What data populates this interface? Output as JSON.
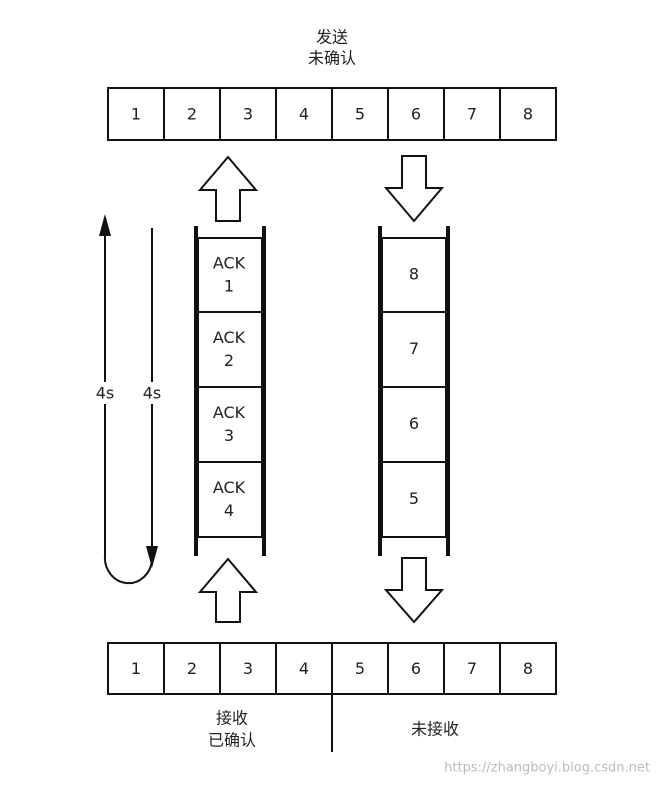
{
  "send_label": [
    "发送",
    "未确认"
  ],
  "send_window": [
    1,
    2,
    3,
    4,
    5,
    6,
    7,
    8
  ],
  "ack_stack": [
    {
      "label": "ACK",
      "number": 1
    },
    {
      "label": "ACK",
      "number": 2
    },
    {
      "label": "ACK",
      "number": 3
    },
    {
      "label": "ACK",
      "number": 4
    }
  ],
  "data_stack": [
    8,
    7,
    6,
    5
  ],
  "timers": [
    "4s",
    "4s"
  ],
  "receive_window": [
    1,
    2,
    3,
    4,
    5,
    6,
    7,
    8
  ],
  "receive_labels": {
    "acked": [
      "接收",
      "已确认"
    ],
    "unacked": "未接收"
  },
  "watermark": "https://zhangboyi.blog.csdn.net"
}
